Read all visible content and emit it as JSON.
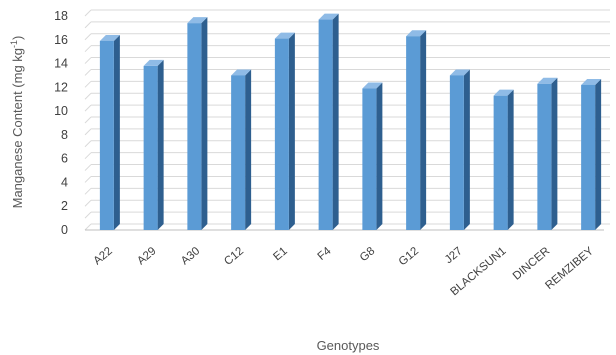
{
  "chart_data": {
    "type": "bar",
    "categories": [
      "A22",
      "A29",
      "A30",
      "C12",
      "E1",
      "F4",
      "G8",
      "G12",
      "J27",
      "BLACKSUN1",
      "DINCER",
      "REMZIBEY"
    ],
    "values": [
      15.9,
      13.8,
      17.4,
      13.0,
      16.1,
      17.7,
      11.9,
      16.3,
      13.0,
      11.3,
      12.3,
      12.2
    ],
    "title": "",
    "xlabel": "Genotypes",
    "ylabel_main": "Manganese Content (mg kg",
    "ylabel_sup": "-1",
    "ylabel_end": ")",
    "ylim": [
      0,
      18
    ],
    "yticks": [
      "0",
      "2",
      "4",
      "6",
      "8",
      "10",
      "12",
      "14",
      "16",
      "18"
    ],
    "grid": true,
    "legend": "none",
    "colors": {
      "bar_front": "#5b9bd5",
      "bar_side": "#2e5f8f",
      "bar_top": "#8fbbe6"
    }
  }
}
